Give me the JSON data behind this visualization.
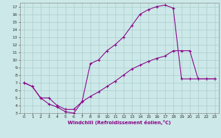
{
  "xlabel": "Windchill (Refroidissement éolien,°C)",
  "bg_color": "#cce8e8",
  "line_color": "#880088",
  "grid_color": "#aacccc",
  "xlim": [
    -0.5,
    23.5
  ],
  "ylim": [
    3,
    17.5
  ],
  "xticks": [
    0,
    1,
    2,
    3,
    4,
    5,
    6,
    7,
    8,
    9,
    10,
    11,
    12,
    13,
    14,
    15,
    16,
    17,
    18,
    19,
    20,
    21,
    22,
    23
  ],
  "yticks": [
    3,
    4,
    5,
    6,
    7,
    8,
    9,
    10,
    11,
    12,
    13,
    14,
    15,
    16,
    17
  ],
  "line1_x": [
    0,
    1,
    2,
    3,
    4,
    5,
    6,
    7,
    8,
    9,
    10,
    11,
    12,
    13,
    14,
    15,
    16,
    17,
    18,
    19,
    20,
    21,
    22,
    23
  ],
  "line1_y": [
    7.0,
    6.5,
    5.0,
    4.2,
    3.8,
    3.2,
    3.0,
    4.5,
    9.5,
    10.0,
    11.2,
    12.0,
    13.0,
    14.5,
    16.0,
    16.6,
    17.0,
    17.2,
    16.8,
    7.5,
    7.5,
    7.5,
    7.5,
    7.5
  ],
  "line2_x": [
    0,
    1,
    2,
    3,
    4,
    5,
    6,
    7,
    8,
    9,
    10,
    11,
    12,
    13,
    14,
    15,
    16,
    17,
    18,
    19,
    20,
    21,
    22,
    23
  ],
  "line2_y": [
    7.0,
    6.5,
    5.0,
    5.0,
    4.0,
    3.5,
    3.5,
    4.5,
    5.2,
    5.8,
    6.5,
    7.2,
    8.0,
    8.8,
    9.3,
    9.8,
    10.2,
    10.5,
    11.2,
    11.2,
    11.2,
    7.5,
    7.5,
    7.5
  ]
}
